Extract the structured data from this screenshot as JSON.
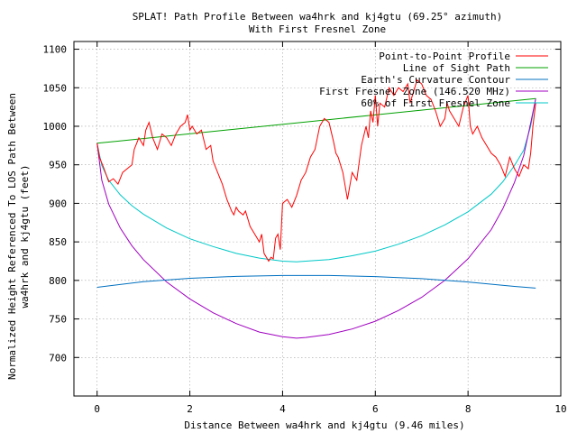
{
  "chart_data": {
    "type": "line",
    "title": "SPLAT! Path Profile Between wa4hrk and kj4gtu (69.25° azimuth)",
    "subtitle": "With First Fresnel Zone",
    "xlabel": "Distance Between wa4hrk and kj4gtu (9.46 miles)",
    "ylabel_lines": [
      "Normalized Height Referenced To LOS Path Between",
      "wa4hrk and kj4gtu (feet)"
    ],
    "xlim": [
      -0.5,
      10
    ],
    "ylim": [
      650,
      1110
    ],
    "x_ticks": [
      0,
      2,
      4,
      6,
      8,
      10
    ],
    "y_ticks": [
      700,
      750,
      800,
      850,
      900,
      950,
      1000,
      1050,
      1100
    ],
    "grid": true,
    "legend_position": "top-right",
    "series": [
      {
        "name": "Point-to-Point Profile",
        "color": "#ff0000",
        "x": [
          0,
          0.05,
          0.15,
          0.25,
          0.35,
          0.45,
          0.55,
          0.65,
          0.75,
          0.8,
          0.9,
          1.0,
          1.05,
          1.12,
          1.2,
          1.3,
          1.4,
          1.5,
          1.6,
          1.7,
          1.8,
          1.9,
          1.95,
          2.0,
          2.05,
          2.15,
          2.25,
          2.35,
          2.45,
          2.5,
          2.6,
          2.7,
          2.8,
          2.9,
          2.95,
          3.0,
          3.05,
          3.15,
          3.2,
          3.3,
          3.4,
          3.5,
          3.55,
          3.6,
          3.7,
          3.75,
          3.8,
          3.85,
          3.9,
          3.95,
          4.0,
          4.1,
          4.2,
          4.3,
          4.4,
          4.5,
          4.6,
          4.7,
          4.75,
          4.8,
          4.9,
          5.0,
          5.1,
          5.15,
          5.2,
          5.3,
          5.4,
          5.5,
          5.6,
          5.7,
          5.8,
          5.85,
          5.9,
          5.95,
          6.0,
          6.05,
          6.1,
          6.2,
          6.3,
          6.4,
          6.5,
          6.6,
          6.7,
          6.75,
          6.8,
          6.9,
          7.0,
          7.1,
          7.2,
          7.3,
          7.4,
          7.5,
          7.55,
          7.6,
          7.7,
          7.8,
          7.9,
          8.0,
          8.05,
          8.1,
          8.2,
          8.3,
          8.4,
          8.5,
          8.6,
          8.7,
          8.8,
          8.9,
          9.0,
          9.1,
          9.2,
          9.3,
          9.35,
          9.4,
          9.46
        ],
        "y": [
          978,
          960,
          945,
          928,
          932,
          925,
          940,
          945,
          950,
          970,
          985,
          975,
          995,
          1005,
          985,
          970,
          990,
          985,
          975,
          990,
          1000,
          1005,
          1015,
          995,
          1000,
          990,
          995,
          970,
          975,
          955,
          940,
          925,
          905,
          890,
          885,
          895,
          890,
          885,
          890,
          870,
          860,
          850,
          860,
          835,
          825,
          830,
          828,
          855,
          860,
          840,
          900,
          905,
          895,
          910,
          930,
          940,
          960,
          970,
          985,
          1000,
          1010,
          1005,
          980,
          965,
          960,
          940,
          905,
          940,
          930,
          975,
          1000,
          985,
          1020,
          1005,
          1040,
          1000,
          1030,
          1025,
          1050,
          1040,
          1050,
          1045,
          1055,
          1030,
          1040,
          1060,
          1055,
          1040,
          1035,
          1020,
          1000,
          1010,
          1030,
          1020,
          1010,
          1000,
          1025,
          1040,
          1000,
          990,
          1000,
          985,
          975,
          965,
          960,
          950,
          935,
          960,
          945,
          935,
          950,
          945,
          965,
          1000,
          1030
        ]
      },
      {
        "name": "Line of Sight Path",
        "color": "#00a000",
        "x": [
          0,
          9.46
        ],
        "y": [
          978,
          1036
        ]
      },
      {
        "name": "Earth's Curvature Contour",
        "color": "#0070c0",
        "x": [
          0,
          1,
          2,
          3,
          4,
          5,
          6,
          7,
          8,
          9,
          9.46
        ],
        "y": [
          791,
          798.4,
          802.7,
          805.2,
          806.4,
          806.4,
          805.0,
          802.3,
          798.0,
          792.2,
          790
        ]
      },
      {
        "name": "First Fresnel Zone (146.520 MHz)",
        "color": "#a000c0",
        "x": [
          0,
          0.1,
          0.25,
          0.5,
          0.75,
          1,
          1.5,
          2,
          2.5,
          3,
          3.5,
          4,
          4.3,
          4.5,
          5,
          5.5,
          6,
          6.5,
          7,
          7.5,
          8,
          8.5,
          8.75,
          9,
          9.2,
          9.35,
          9.46
        ],
        "y": [
          978,
          930,
          899,
          868,
          845,
          827,
          798,
          776,
          758,
          744,
          733,
          727,
          725,
          726,
          730,
          737,
          747,
          761,
          778,
          800,
          828,
          866,
          893,
          927,
          962,
          1004,
          1036
        ]
      },
      {
        "name": "60% of First Fresnel Zone",
        "color": "#00c8c8",
        "x": [
          0,
          0.1,
          0.25,
          0.5,
          0.75,
          1,
          1.5,
          2,
          2.5,
          3,
          3.5,
          4,
          4.3,
          4.5,
          5,
          5.5,
          6,
          6.5,
          7,
          7.5,
          8,
          8.5,
          8.75,
          9,
          9.2,
          9.35,
          9.46
        ],
        "y": [
          978,
          949,
          930,
          911,
          897,
          886,
          868,
          854,
          844,
          835,
          829,
          825,
          824,
          825,
          827,
          832,
          838,
          847,
          858,
          872,
          889,
          912,
          928,
          949,
          969,
          1000,
          1036
        ]
      }
    ]
  }
}
